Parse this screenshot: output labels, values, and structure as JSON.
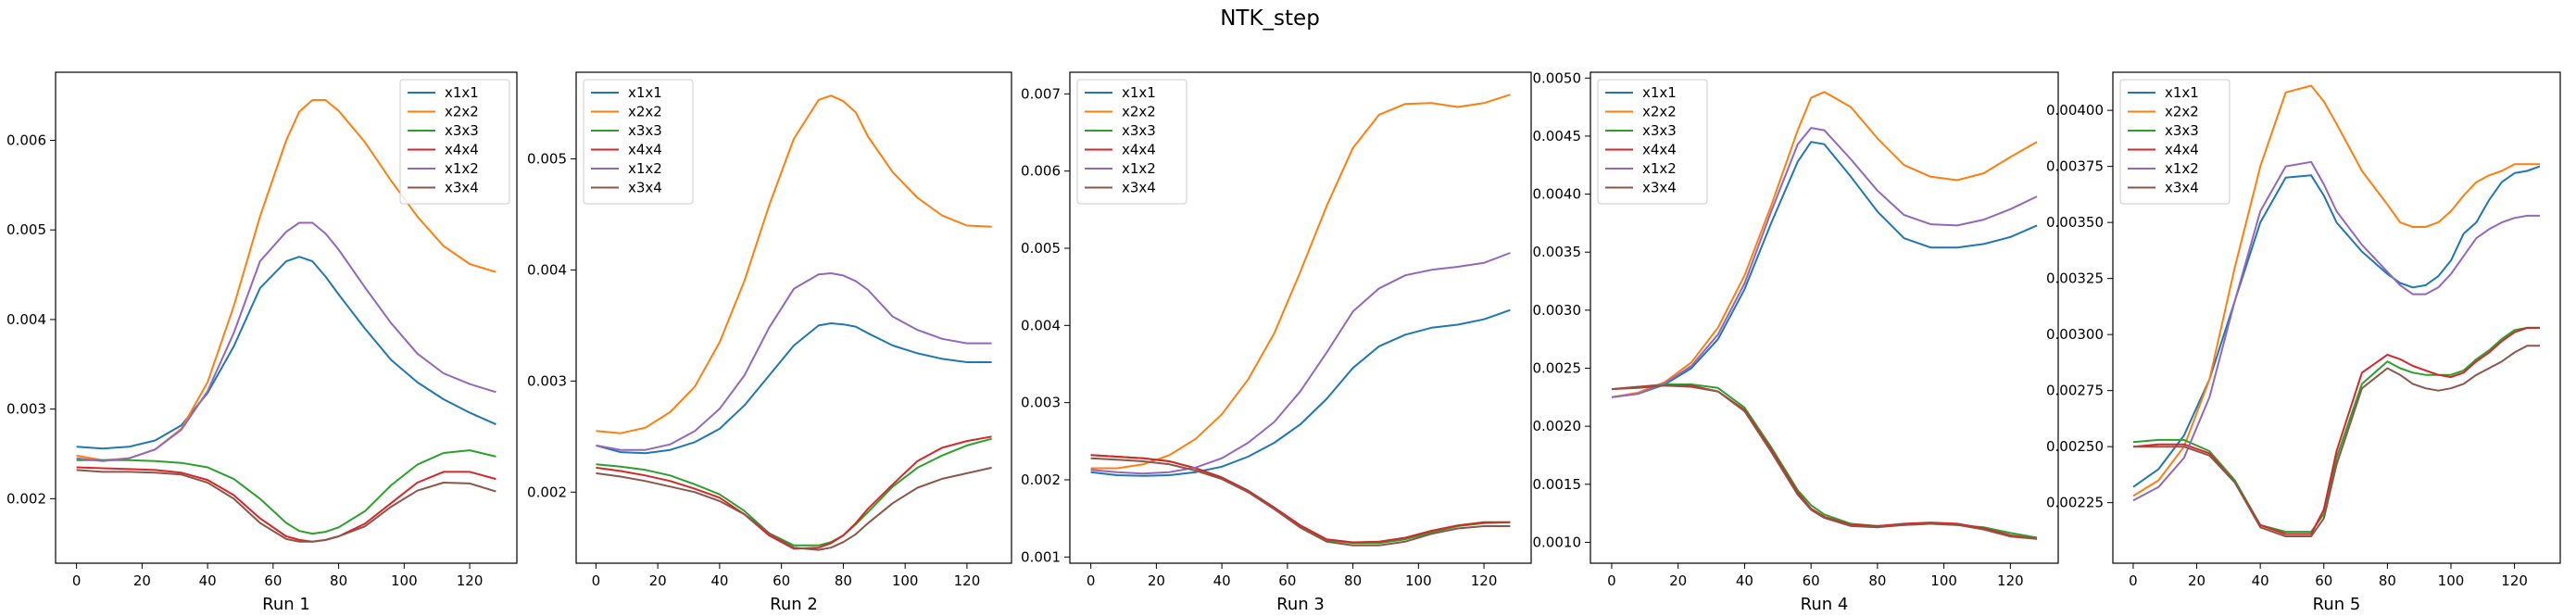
{
  "figure": {
    "title": "NTK_step"
  },
  "colors": {
    "x1x1": "#1f77b4",
    "x2x2": "#ff7f0e",
    "x3x3": "#2ca02c",
    "x4x4": "#d62728",
    "x1x2": "#9467bd",
    "x3x4": "#8c564b"
  },
  "chart_data": [
    {
      "type": "line",
      "xlabel": "Run 1",
      "x": [
        0,
        8,
        16,
        24,
        32,
        40,
        48,
        56,
        64,
        68,
        72,
        76,
        80,
        88,
        96,
        104,
        112,
        120,
        128
      ],
      "xticks": [
        0,
        20,
        40,
        60,
        80,
        100,
        120
      ],
      "xlim": [
        -6.4,
        134.4
      ],
      "ylim": [
        0.00128,
        0.00676
      ],
      "yticks": [
        0.002,
        0.003,
        0.004,
        0.005,
        0.006
      ],
      "yticklabels": [
        "0.002",
        "0.003",
        "0.004",
        "0.005",
        "0.006"
      ],
      "legend": "top-right",
      "series": [
        {
          "name": "x1x1",
          "values": [
            0.00258,
            0.00256,
            0.00258,
            0.00265,
            0.00282,
            0.00318,
            0.0037,
            0.00435,
            0.00465,
            0.0047,
            0.00465,
            0.00448,
            0.00428,
            0.0039,
            0.00355,
            0.0033,
            0.00311,
            0.00296,
            0.00283
          ]
        },
        {
          "name": "x2x2",
          "values": [
            0.00248,
            0.00243,
            0.00245,
            0.00255,
            0.00278,
            0.0033,
            0.00415,
            0.00515,
            0.006,
            0.00632,
            0.00645,
            0.00645,
            0.00633,
            0.00598,
            0.00555,
            0.00515,
            0.00482,
            0.00462,
            0.00453
          ]
        },
        {
          "name": "x3x3",
          "values": [
            0.00243,
            0.00243,
            0.00243,
            0.00242,
            0.0024,
            0.00235,
            0.00222,
            0.002,
            0.00173,
            0.00164,
            0.00161,
            0.00163,
            0.00168,
            0.00186,
            0.00215,
            0.00238,
            0.00251,
            0.00254,
            0.00247
          ]
        },
        {
          "name": "x4x4",
          "values": [
            0.00235,
            0.00234,
            0.00233,
            0.00232,
            0.00229,
            0.00221,
            0.00204,
            0.00178,
            0.00158,
            0.00154,
            0.00152,
            0.00154,
            0.00158,
            0.00172,
            0.00195,
            0.00218,
            0.0023,
            0.0023,
            0.00222
          ]
        },
        {
          "name": "x1x2",
          "values": [
            0.00245,
            0.00242,
            0.00245,
            0.00255,
            0.00277,
            0.0032,
            0.00385,
            0.00465,
            0.00498,
            0.00508,
            0.00508,
            0.00496,
            0.00478,
            0.00436,
            0.00396,
            0.00362,
            0.0034,
            0.00328,
            0.00319
          ]
        },
        {
          "name": "x3x4",
          "values": [
            0.00232,
            0.0023,
            0.0023,
            0.00229,
            0.00227,
            0.00218,
            0.002,
            0.00173,
            0.00155,
            0.00152,
            0.00152,
            0.00154,
            0.00158,
            0.00169,
            0.00191,
            0.00209,
            0.00218,
            0.00217,
            0.00208
          ]
        }
      ]
    },
    {
      "type": "line",
      "xlabel": "Run 2",
      "x": [
        0,
        8,
        16,
        24,
        32,
        40,
        48,
        56,
        64,
        72,
        76,
        80,
        84,
        88,
        96,
        104,
        112,
        120,
        128
      ],
      "xticks": [
        0,
        20,
        40,
        60,
        80,
        100,
        120
      ],
      "xlim": [
        -6.4,
        134.4
      ],
      "ylim": [
        0.00136,
        0.00578
      ],
      "yticks": [
        0.002,
        0.003,
        0.004,
        0.005
      ],
      "yticklabels": [
        "0.002",
        "0.003",
        "0.004",
        "0.005"
      ],
      "legend": "top-left",
      "series": [
        {
          "name": "x1x1",
          "values": [
            0.00242,
            0.00236,
            0.00235,
            0.00238,
            0.00245,
            0.00257,
            0.00278,
            0.00305,
            0.00332,
            0.0035,
            0.00352,
            0.00351,
            0.00349,
            0.00343,
            0.00332,
            0.00325,
            0.0032,
            0.00317,
            0.00317
          ]
        },
        {
          "name": "x2x2",
          "values": [
            0.00255,
            0.00253,
            0.00258,
            0.00272,
            0.00295,
            0.00335,
            0.0039,
            0.00458,
            0.00518,
            0.00553,
            0.00557,
            0.00552,
            0.00542,
            0.0052,
            0.00488,
            0.00465,
            0.00449,
            0.0044,
            0.00439
          ]
        },
        {
          "name": "x3x3",
          "values": [
            0.00225,
            0.00223,
            0.0022,
            0.00215,
            0.00207,
            0.00198,
            0.00183,
            0.00163,
            0.00152,
            0.00152,
            0.00155,
            0.00161,
            0.00171,
            0.00182,
            0.00205,
            0.00222,
            0.00233,
            0.00242,
            0.00248
          ]
        },
        {
          "name": "x4x4",
          "values": [
            0.00222,
            0.00219,
            0.00215,
            0.0021,
            0.00203,
            0.00195,
            0.0018,
            0.00161,
            0.00149,
            0.0015,
            0.00154,
            0.00161,
            0.00172,
            0.00185,
            0.00207,
            0.00228,
            0.0024,
            0.00246,
            0.0025
          ]
        },
        {
          "name": "x1x2",
          "values": [
            0.00242,
            0.00238,
            0.00238,
            0.00243,
            0.00255,
            0.00275,
            0.00305,
            0.00348,
            0.00383,
            0.00396,
            0.00397,
            0.00395,
            0.0039,
            0.00382,
            0.00358,
            0.00346,
            0.00338,
            0.00334,
            0.00334
          ]
        },
        {
          "name": "x3x4",
          "values": [
            0.00217,
            0.00214,
            0.0021,
            0.00205,
            0.002,
            0.00192,
            0.0018,
            0.00163,
            0.0015,
            0.00148,
            0.0015,
            0.00155,
            0.00162,
            0.00172,
            0.0019,
            0.00204,
            0.00212,
            0.00217,
            0.00222
          ]
        }
      ]
    },
    {
      "type": "line",
      "xlabel": "Run 3",
      "x": [
        0,
        8,
        16,
        24,
        32,
        40,
        48,
        56,
        64,
        72,
        80,
        88,
        96,
        104,
        112,
        120,
        128
      ],
      "xticks": [
        0,
        20,
        40,
        60,
        80,
        100,
        120
      ],
      "xlim": [
        -6.4,
        134.4
      ],
      "ylim": [
        0.00092,
        0.00728
      ],
      "yticks": [
        0.001,
        0.002,
        0.003,
        0.004,
        0.005,
        0.006,
        0.007
      ],
      "yticklabels": [
        "0.001",
        "0.002",
        "0.003",
        "0.004",
        "0.005",
        "0.006",
        "0.007"
      ],
      "legend": "top-left",
      "series": [
        {
          "name": "x1x1",
          "values": [
            0.0021,
            0.00206,
            0.00205,
            0.00206,
            0.0021,
            0.00217,
            0.0023,
            0.00248,
            0.00272,
            0.00305,
            0.00345,
            0.00373,
            0.00388,
            0.00397,
            0.00401,
            0.00408,
            0.0042
          ]
        },
        {
          "name": "x2x2",
          "values": [
            0.00215,
            0.00215,
            0.0022,
            0.00232,
            0.00253,
            0.00285,
            0.0033,
            0.0039,
            0.0047,
            0.00555,
            0.0063,
            0.00673,
            0.00687,
            0.00688,
            0.00683,
            0.00688,
            0.00699
          ]
        },
        {
          "name": "x3x3",
          "values": [
            0.00232,
            0.0023,
            0.00228,
            0.00224,
            0.00215,
            0.00203,
            0.00186,
            0.00164,
            0.0014,
            0.00122,
            0.00118,
            0.00118,
            0.00123,
            0.00132,
            0.0014,
            0.00144,
            0.00145
          ]
        },
        {
          "name": "x4x4",
          "values": [
            0.00232,
            0.0023,
            0.00228,
            0.00224,
            0.00215,
            0.00203,
            0.00186,
            0.00164,
            0.00141,
            0.00123,
            0.00119,
            0.0012,
            0.00125,
            0.00134,
            0.00141,
            0.00145,
            0.00145
          ]
        },
        {
          "name": "x1x2",
          "values": [
            0.00213,
            0.0021,
            0.00208,
            0.0021,
            0.00216,
            0.00228,
            0.00248,
            0.00275,
            0.00315,
            0.00365,
            0.00418,
            0.00448,
            0.00465,
            0.00472,
            0.00476,
            0.00481,
            0.00494
          ]
        },
        {
          "name": "x3x4",
          "values": [
            0.00228,
            0.00226,
            0.00224,
            0.0022,
            0.00212,
            0.00201,
            0.00184,
            0.00162,
            0.00138,
            0.0012,
            0.00115,
            0.00115,
            0.0012,
            0.0013,
            0.00137,
            0.0014,
            0.0014
          ]
        }
      ]
    },
    {
      "type": "line",
      "xlabel": "Run 4",
      "x": [
        0,
        8,
        16,
        24,
        32,
        40,
        48,
        56,
        60,
        64,
        72,
        80,
        88,
        96,
        104,
        112,
        120,
        128
      ],
      "xticks": [
        0,
        20,
        40,
        60,
        80,
        100,
        120
      ],
      "xlim": [
        -6.4,
        134.4
      ],
      "ylim": [
        0.00082,
        0.00505
      ],
      "yticks": [
        0.001,
        0.0015,
        0.002,
        0.0025,
        0.003,
        0.0035,
        0.004,
        0.0045,
        0.005
      ],
      "yticklabels": [
        "0.0010",
        "0.0015",
        "0.0020",
        "0.0025",
        "0.0030",
        "0.0035",
        "0.0040",
        "0.0045",
        "0.0050"
      ],
      "legend": "top-left",
      "series": [
        {
          "name": "x1x1",
          "values": [
            0.00225,
            0.00228,
            0.00236,
            0.0025,
            0.00275,
            0.00318,
            0.00375,
            0.00428,
            0.00445,
            0.00443,
            0.00415,
            0.00385,
            0.00362,
            0.00354,
            0.00354,
            0.00357,
            0.00363,
            0.00373
          ]
        },
        {
          "name": "x2x2",
          "values": [
            0.00225,
            0.00229,
            0.00238,
            0.00255,
            0.00285,
            0.0033,
            0.0039,
            0.00455,
            0.00483,
            0.00488,
            0.00475,
            0.00448,
            0.00425,
            0.00415,
            0.00412,
            0.00418,
            0.00432,
            0.00445
          ]
        },
        {
          "name": "x3x3",
          "values": [
            0.00232,
            0.00234,
            0.00236,
            0.00236,
            0.00233,
            0.00216,
            0.00182,
            0.00145,
            0.00132,
            0.00124,
            0.00116,
            0.00114,
            0.00115,
            0.00116,
            0.00115,
            0.00113,
            0.00108,
            0.00104
          ]
        },
        {
          "name": "x4x4",
          "values": [
            0.00232,
            0.00234,
            0.00235,
            0.00235,
            0.0023,
            0.00214,
            0.0018,
            0.00143,
            0.00129,
            0.00122,
            0.00115,
            0.00114,
            0.00116,
            0.00117,
            0.00116,
            0.00112,
            0.00106,
            0.00103
          ]
        },
        {
          "name": "x1x2",
          "values": [
            0.00225,
            0.00228,
            0.00237,
            0.00252,
            0.00279,
            0.00323,
            0.00385,
            0.00443,
            0.00457,
            0.00455,
            0.0043,
            0.00403,
            0.00382,
            0.00374,
            0.00373,
            0.00378,
            0.00387,
            0.00398
          ]
        },
        {
          "name": "x3x4",
          "values": [
            0.00232,
            0.00233,
            0.00235,
            0.00234,
            0.0023,
            0.00213,
            0.00178,
            0.00141,
            0.00128,
            0.00121,
            0.00114,
            0.00113,
            0.00115,
            0.00116,
            0.00115,
            0.00111,
            0.00105,
            0.00103
          ]
        }
      ]
    },
    {
      "type": "line",
      "xlabel": "Run 5",
      "x": [
        0,
        8,
        16,
        24,
        32,
        40,
        48,
        56,
        60,
        64,
        72,
        80,
        84,
        88,
        92,
        96,
        100,
        104,
        108,
        112,
        116,
        120,
        124,
        128
      ],
      "xticks": [
        0,
        20,
        40,
        60,
        80,
        100,
        120
      ],
      "xlim": [
        -6.4,
        134.4
      ],
      "ylim": [
        0.00198,
        0.00417
      ],
      "yticks": [
        0.00225,
        0.0025,
        0.00275,
        0.003,
        0.00325,
        0.0035,
        0.00375,
        0.004
      ],
      "yticklabels": [
        "0.00225",
        "0.00250",
        "0.00275",
        "0.00300",
        "0.00325",
        "0.00350",
        "0.00375",
        "0.00400"
      ],
      "legend": "top-left",
      "series": [
        {
          "name": "x1x1",
          "values": [
            0.00232,
            0.0024,
            0.00255,
            0.0028,
            0.00315,
            0.0035,
            0.0037,
            0.00371,
            0.00362,
            0.0035,
            0.00337,
            0.00327,
            0.00323,
            0.00321,
            0.00322,
            0.00326,
            0.00333,
            0.00345,
            0.0035,
            0.0036,
            0.00368,
            0.00372,
            0.00373,
            0.00375
          ]
        },
        {
          "name": "x2x2",
          "values": [
            0.00228,
            0.00235,
            0.0025,
            0.0028,
            0.0033,
            0.00375,
            0.00408,
            0.00411,
            0.00404,
            0.00394,
            0.00373,
            0.00358,
            0.0035,
            0.00348,
            0.00348,
            0.0035,
            0.00355,
            0.00362,
            0.00368,
            0.00371,
            0.00373,
            0.00376,
            0.00376,
            0.00376
          ]
        },
        {
          "name": "x3x3",
          "values": [
            0.00252,
            0.00253,
            0.00253,
            0.00248,
            0.00235,
            0.00215,
            0.00212,
            0.00212,
            0.0022,
            0.00245,
            0.00278,
            0.00288,
            0.00285,
            0.00283,
            0.00282,
            0.00282,
            0.00282,
            0.00284,
            0.00289,
            0.00293,
            0.00298,
            0.00302,
            0.00303,
            0.00303
          ]
        },
        {
          "name": "x4x4",
          "values": [
            0.0025,
            0.00251,
            0.00251,
            0.00247,
            0.00234,
            0.00215,
            0.00211,
            0.00211,
            0.00222,
            0.00248,
            0.00283,
            0.00291,
            0.00289,
            0.00286,
            0.00284,
            0.00282,
            0.00281,
            0.00283,
            0.00288,
            0.00292,
            0.00297,
            0.00301,
            0.00303,
            0.00303
          ]
        },
        {
          "name": "x1x2",
          "values": [
            0.00226,
            0.00232,
            0.00245,
            0.00272,
            0.00315,
            0.00355,
            0.00375,
            0.00377,
            0.00367,
            0.00355,
            0.0034,
            0.00328,
            0.00322,
            0.00318,
            0.00318,
            0.00321,
            0.00327,
            0.00335,
            0.00343,
            0.00347,
            0.0035,
            0.00352,
            0.00353,
            0.00353
          ]
        },
        {
          "name": "x3x4",
          "values": [
            0.0025,
            0.0025,
            0.0025,
            0.00246,
            0.00234,
            0.00214,
            0.0021,
            0.0021,
            0.00218,
            0.00242,
            0.00276,
            0.00285,
            0.00282,
            0.00278,
            0.00276,
            0.00275,
            0.00276,
            0.00278,
            0.00282,
            0.00285,
            0.00288,
            0.00292,
            0.00295,
            0.00295
          ]
        }
      ]
    }
  ]
}
